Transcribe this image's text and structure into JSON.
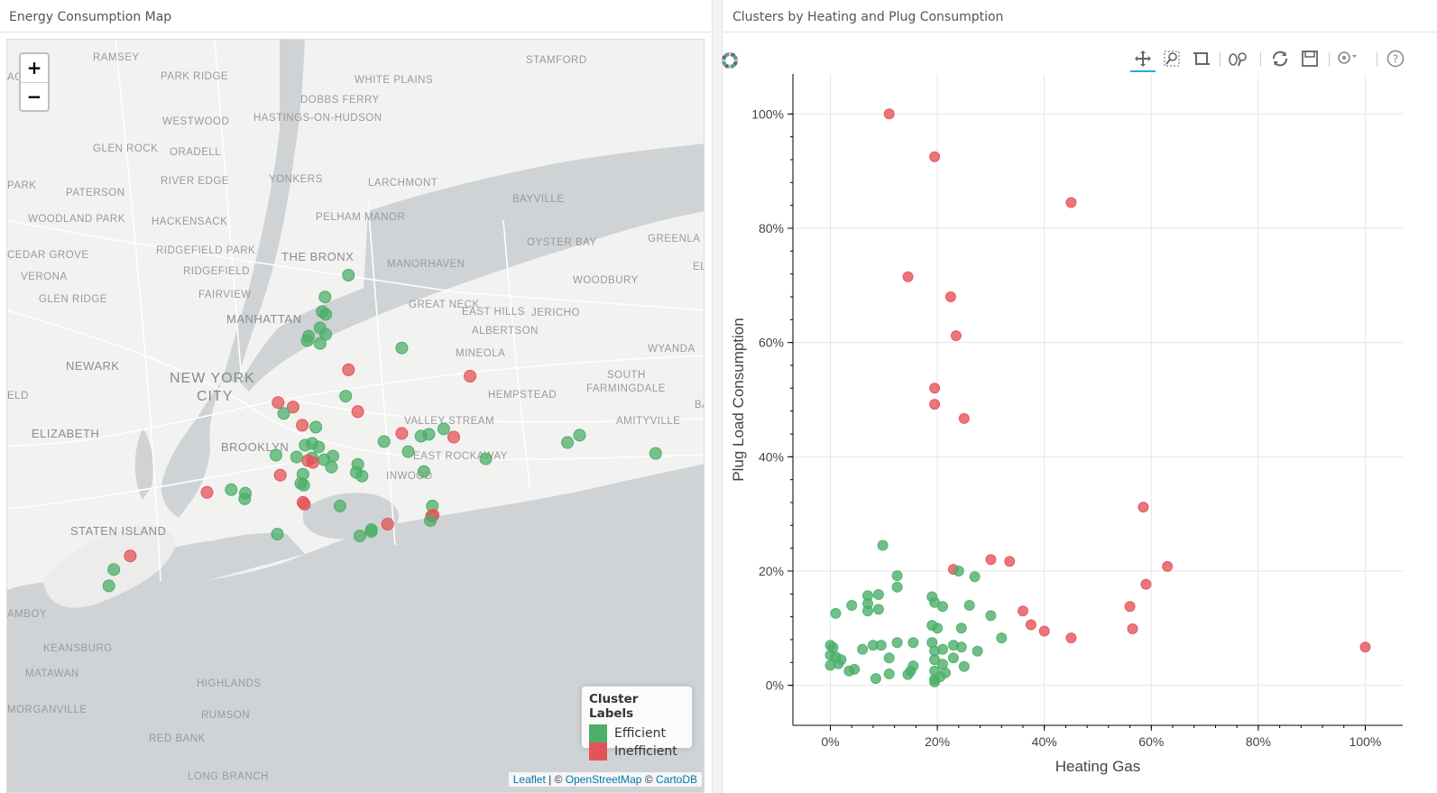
{
  "left_panel": {
    "title": "Energy Consumption Map"
  },
  "right_panel": {
    "title": "Clusters by Heating and Plug Consumption"
  },
  "map": {
    "zoom_in_label": "+",
    "zoom_out_label": "−",
    "legend": {
      "title": "Cluster Labels",
      "items": [
        {
          "label": "Efficient",
          "color": "#4daf6a"
        },
        {
          "label": "Inefficient",
          "color": "#e5535a"
        }
      ]
    },
    "attribution": {
      "leaflet": "Leaflet",
      "sep1": " | © ",
      "osm": "OpenStreetMap",
      "sep2": " © ",
      "carto": "CartoDB"
    },
    "place_labels": [
      "RAMSEY",
      "STAMFORD",
      "PARK RIDGE",
      "WHITE PLAINS",
      "DOBBS FERRY",
      "WESTWOOD",
      "HASTINGS-ON-HUDSON",
      "GLEN ROCK",
      "ORADELL",
      "RIVER EDGE",
      "YONKERS",
      "LARCHMONT",
      "PARK",
      "PATERSON",
      "BAYVILLE",
      "WOODLAND PARK",
      "HACKENSACK",
      "PELHAM MANOR",
      "OYSTER BAY",
      "GREENLA",
      "RIDGEFIELD PARK",
      "THE BRONX",
      "CEDAR GROVE",
      "VERONA",
      "RIDGEFIELD",
      "MANORHAVEN",
      "WOODBURY",
      "FAIRVIEW",
      "GLEN RIDGE",
      "GREAT NECK",
      "MANHATTAN",
      "ALBERTSON",
      "JERICHO",
      "EAST HILLS",
      "MINEOLA",
      "NEWARK",
      "WYANDA",
      "NEW YORK",
      "CITY",
      "SOUTH",
      "FARMINGDALE",
      "HEMPSTEAD",
      "ELIZABETH",
      "BROOKLYN",
      "VALLEY STREAM",
      "AMITYVILLE",
      "EAST ROCKAWAY",
      "INWOOD",
      "STATEN ISLAND",
      "AMBOY",
      "KEANSBURG",
      "MATAWAN",
      "HIGHLANDS",
      "MORGANVILLE",
      "RUMSON",
      "RED BANK",
      "LONG BRANCH",
      "ELV",
      "BA",
      "ELD",
      "AC"
    ],
    "points": [
      {
        "lat": 40.872,
        "lon": -73.893,
        "cluster": "Efficient"
      },
      {
        "lat": 40.848,
        "lon": -73.926,
        "cluster": "Efficient"
      },
      {
        "lat": 40.832,
        "lon": -73.93,
        "cluster": "Efficient"
      },
      {
        "lat": 40.829,
        "lon": -73.925,
        "cluster": "Efficient"
      },
      {
        "lat": 40.814,
        "lon": -73.933,
        "cluster": "Efficient"
      },
      {
        "lat": 40.807,
        "lon": -73.925,
        "cluster": "Efficient"
      },
      {
        "lat": 40.805,
        "lon": -73.949,
        "cluster": "Efficient"
      },
      {
        "lat": 40.8,
        "lon": -73.951,
        "cluster": "Efficient"
      },
      {
        "lat": 40.797,
        "lon": -73.933,
        "cluster": "Efficient"
      },
      {
        "lat": 40.792,
        "lon": -73.818,
        "cluster": "Efficient"
      },
      {
        "lat": 40.768,
        "lon": -73.893,
        "cluster": "Inefficient"
      },
      {
        "lat": 40.761,
        "lon": -73.722,
        "cluster": "Inefficient"
      },
      {
        "lat": 40.739,
        "lon": -73.897,
        "cluster": "Efficient"
      },
      {
        "lat": 40.732,
        "lon": -73.992,
        "cluster": "Inefficient"
      },
      {
        "lat": 40.727,
        "lon": -73.971,
        "cluster": "Inefficient"
      },
      {
        "lat": 40.722,
        "lon": -73.88,
        "cluster": "Inefficient"
      },
      {
        "lat": 40.72,
        "lon": -73.984,
        "cluster": "Efficient"
      },
      {
        "lat": 40.707,
        "lon": -73.958,
        "cluster": "Inefficient"
      },
      {
        "lat": 40.705,
        "lon": -73.939,
        "cluster": "Efficient"
      },
      {
        "lat": 40.703,
        "lon": -73.759,
        "cluster": "Efficient"
      },
      {
        "lat": 40.698,
        "lon": -73.818,
        "cluster": "Inefficient"
      },
      {
        "lat": 40.697,
        "lon": -73.78,
        "cluster": "Efficient"
      },
      {
        "lat": 40.696,
        "lon": -73.568,
        "cluster": "Efficient"
      },
      {
        "lat": 40.695,
        "lon": -73.791,
        "cluster": "Efficient"
      },
      {
        "lat": 40.694,
        "lon": -73.745,
        "cluster": "Inefficient"
      },
      {
        "lat": 40.689,
        "lon": -73.843,
        "cluster": "Efficient"
      },
      {
        "lat": 40.688,
        "lon": -73.585,
        "cluster": "Efficient"
      },
      {
        "lat": 40.687,
        "lon": -73.944,
        "cluster": "Efficient"
      },
      {
        "lat": 40.685,
        "lon": -73.954,
        "cluster": "Efficient"
      },
      {
        "lat": 40.683,
        "lon": -73.935,
        "cluster": "Efficient"
      },
      {
        "lat": 40.678,
        "lon": -73.809,
        "cluster": "Efficient"
      },
      {
        "lat": 40.676,
        "lon": -73.461,
        "cluster": "Efficient"
      },
      {
        "lat": 40.674,
        "lon": -73.995,
        "cluster": "Efficient"
      },
      {
        "lat": 40.673,
        "lon": -73.915,
        "cluster": "Efficient"
      },
      {
        "lat": 40.672,
        "lon": -73.966,
        "cluster": "Efficient"
      },
      {
        "lat": 40.671,
        "lon": -73.944,
        "cluster": "Efficient"
      },
      {
        "lat": 40.67,
        "lon": -73.7,
        "cluster": "Efficient"
      },
      {
        "lat": 40.669,
        "lon": -73.927,
        "cluster": "Efficient"
      },
      {
        "lat": 40.668,
        "lon": -73.95,
        "cluster": "Inefficient"
      },
      {
        "lat": 40.666,
        "lon": -73.943,
        "cluster": "Inefficient"
      },
      {
        "lat": 40.664,
        "lon": -73.88,
        "cluster": "Efficient"
      },
      {
        "lat": 40.661,
        "lon": -73.917,
        "cluster": "Efficient"
      },
      {
        "lat": 40.656,
        "lon": -73.787,
        "cluster": "Efficient"
      },
      {
        "lat": 40.655,
        "lon": -73.882,
        "cluster": "Efficient"
      },
      {
        "lat": 40.653,
        "lon": -73.957,
        "cluster": "Efficient"
      },
      {
        "lat": 40.652,
        "lon": -73.989,
        "cluster": "Inefficient"
      },
      {
        "lat": 40.651,
        "lon": -73.874,
        "cluster": "Efficient"
      },
      {
        "lat": 40.643,
        "lon": -73.96,
        "cluster": "Efficient"
      },
      {
        "lat": 40.641,
        "lon": -73.956,
        "cluster": "Efficient"
      },
      {
        "lat": 40.636,
        "lon": -74.058,
        "cluster": "Efficient"
      },
      {
        "lat": 40.633,
        "lon": -74.092,
        "cluster": "Inefficient"
      },
      {
        "lat": 40.632,
        "lon": -74.038,
        "cluster": "Efficient"
      },
      {
        "lat": 40.626,
        "lon": -74.039,
        "cluster": "Efficient"
      },
      {
        "lat": 40.622,
        "lon": -73.957,
        "cluster": "Inefficient"
      },
      {
        "lat": 40.62,
        "lon": -73.955,
        "cluster": "Inefficient"
      },
      {
        "lat": 40.618,
        "lon": -73.905,
        "cluster": "Efficient"
      },
      {
        "lat": 40.618,
        "lon": -73.775,
        "cluster": "Efficient"
      },
      {
        "lat": 40.608,
        "lon": -73.774,
        "cluster": "Inefficient"
      },
      {
        "lat": 40.607,
        "lon": -73.776,
        "cluster": "Inefficient"
      },
      {
        "lat": 40.602,
        "lon": -73.778,
        "cluster": "Efficient"
      },
      {
        "lat": 40.598,
        "lon": -73.838,
        "cluster": "Inefficient"
      },
      {
        "lat": 40.592,
        "lon": -73.861,
        "cluster": "Efficient"
      },
      {
        "lat": 40.59,
        "lon": -73.861,
        "cluster": "Efficient"
      },
      {
        "lat": 40.587,
        "lon": -73.993,
        "cluster": "Efficient"
      },
      {
        "lat": 40.585,
        "lon": -73.877,
        "cluster": "Efficient"
      },
      {
        "lat": 40.563,
        "lon": -74.2,
        "cluster": "Inefficient"
      },
      {
        "lat": 40.548,
        "lon": -74.223,
        "cluster": "Efficient"
      },
      {
        "lat": 40.53,
        "lon": -74.23,
        "cluster": "Efficient"
      }
    ]
  },
  "plot": {
    "toolbar": [
      "pan-tool",
      "box-zoom-tool",
      "box-select-tool",
      "wheel-zoom-tool",
      "reset-tool",
      "save-tool",
      "hover-tool",
      "help-tool"
    ],
    "chart_data": {
      "type": "scatter",
      "xlabel": "Heating Gas",
      "ylabel": "Plug Load Consumption",
      "xlim": [
        -0.07,
        1.07
      ],
      "ylim": [
        -0.07,
        1.07
      ],
      "x_ticks": [
        0,
        0.2,
        0.4,
        0.6,
        0.8,
        1.0
      ],
      "y_ticks": [
        0,
        0.2,
        0.4,
        0.6,
        0.8,
        1.0
      ],
      "tick_labels": [
        "0%",
        "20%",
        "40%",
        "60%",
        "80%",
        "100%"
      ],
      "grid": true,
      "series": [
        {
          "name": "Inefficient",
          "color": "#e5535a",
          "points": [
            [
              0.11,
              1.0
            ],
            [
              0.195,
              0.925
            ],
            [
              0.45,
              0.845
            ],
            [
              0.145,
              0.715
            ],
            [
              0.225,
              0.68
            ],
            [
              0.235,
              0.612
            ],
            [
              0.195,
              0.52
            ],
            [
              0.195,
              0.492
            ],
            [
              0.25,
              0.467
            ],
            [
              0.585,
              0.312
            ],
            [
              0.63,
              0.208
            ],
            [
              0.3,
              0.22
            ],
            [
              0.335,
              0.217
            ],
            [
              0.23,
              0.203
            ],
            [
              0.59,
              0.177
            ],
            [
              0.56,
              0.138
            ],
            [
              0.36,
              0.13
            ],
            [
              0.375,
              0.106
            ],
            [
              0.4,
              0.095
            ],
            [
              0.565,
              0.099
            ],
            [
              0.45,
              0.083
            ],
            [
              1.0,
              0.067
            ]
          ]
        },
        {
          "name": "Efficient",
          "color": "#4daf6a",
          "points": [
            [
              0.098,
              0.245
            ],
            [
              0.125,
              0.192
            ],
            [
              0.125,
              0.172
            ],
            [
              0.24,
              0.2
            ],
            [
              0.27,
              0.19
            ],
            [
              0.07,
              0.157
            ],
            [
              0.09,
              0.159
            ],
            [
              0.19,
              0.155
            ],
            [
              0.195,
              0.145
            ],
            [
              0.07,
              0.143
            ],
            [
              0.04,
              0.14
            ],
            [
              0.21,
              0.138
            ],
            [
              0.26,
              0.14
            ],
            [
              0.07,
              0.13
            ],
            [
              0.09,
              0.133
            ],
            [
              0.01,
              0.126
            ],
            [
              0.3,
              0.122
            ],
            [
              0.19,
              0.105
            ],
            [
              0.2,
              0.1
            ],
            [
              0.245,
              0.1
            ],
            [
              0.32,
              0.083
            ],
            [
              0.125,
              0.075
            ],
            [
              0.155,
              0.075
            ],
            [
              0.08,
              0.07
            ],
            [
              0.095,
              0.07
            ],
            [
              0.0,
              0.07
            ],
            [
              0.005,
              0.066
            ],
            [
              0.19,
              0.075
            ],
            [
              0.23,
              0.07
            ],
            [
              0.245,
              0.067
            ],
            [
              0.275,
              0.06
            ],
            [
              0.06,
              0.063
            ],
            [
              0.21,
              0.063
            ],
            [
              0.195,
              0.06
            ],
            [
              0.0,
              0.053
            ],
            [
              0.01,
              0.05
            ],
            [
              0.02,
              0.045
            ],
            [
              0.11,
              0.048
            ],
            [
              0.23,
              0.048
            ],
            [
              0.195,
              0.045
            ],
            [
              0.015,
              0.038
            ],
            [
              0.0,
              0.035
            ],
            [
              0.21,
              0.037
            ],
            [
              0.25,
              0.033
            ],
            [
              0.155,
              0.034
            ],
            [
              0.045,
              0.028
            ],
            [
              0.035,
              0.025
            ],
            [
              0.15,
              0.025
            ],
            [
              0.195,
              0.025
            ],
            [
              0.215,
              0.022
            ],
            [
              0.11,
              0.02
            ],
            [
              0.145,
              0.019
            ],
            [
              0.085,
              0.012
            ],
            [
              0.205,
              0.015
            ],
            [
              0.195,
              0.01
            ],
            [
              0.195,
              0.006
            ]
          ]
        }
      ]
    }
  }
}
